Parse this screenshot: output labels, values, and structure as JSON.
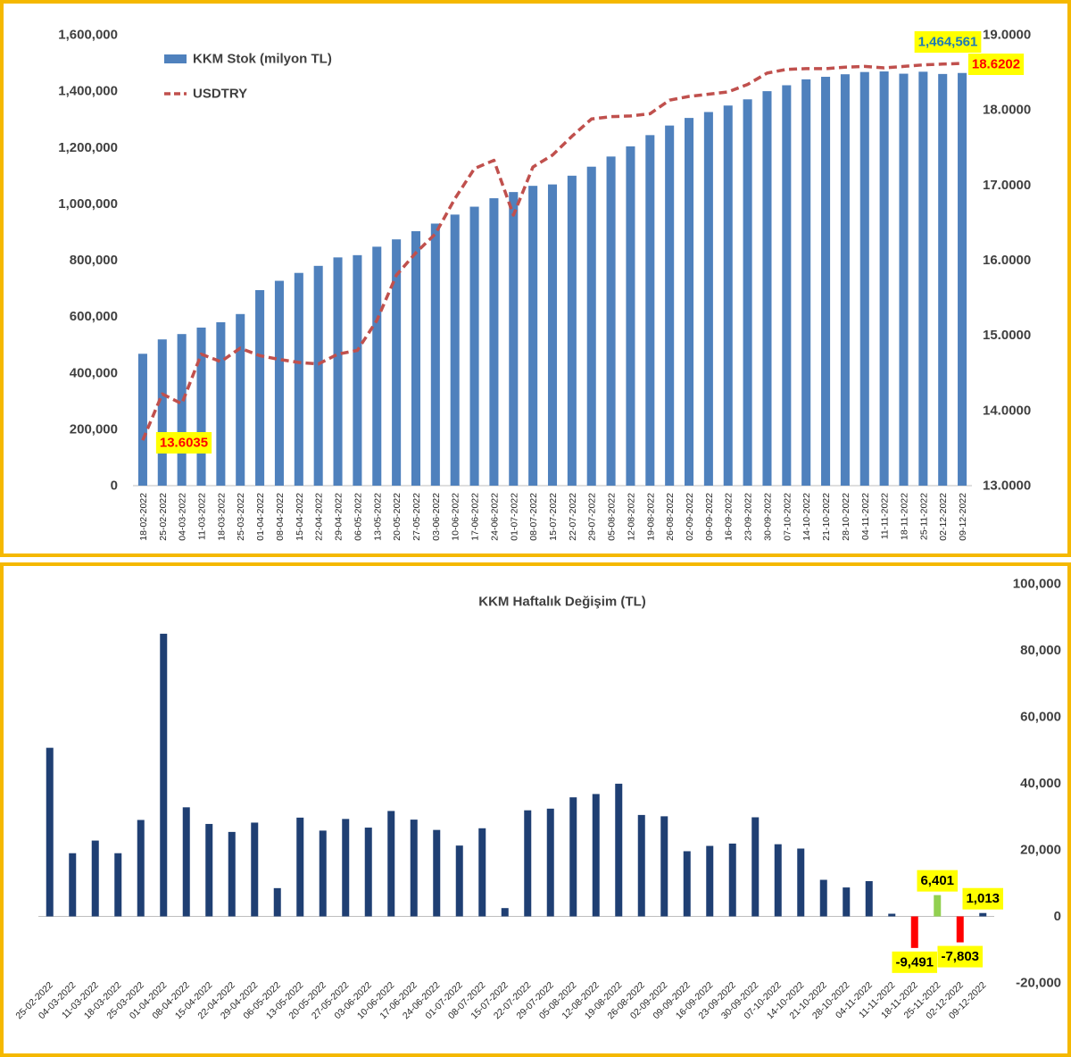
{
  "top_chart": {
    "chart_data": {
      "type": "bar",
      "legend": {
        "placement": "top-left"
      },
      "categories": [
        "18-02-2022",
        "25-02-2022",
        "04-03-2022",
        "11-03-2022",
        "18-03-2022",
        "25-03-2022",
        "01-04-2022",
        "08-04-2022",
        "15-04-2022",
        "22-04-2022",
        "29-04-2022",
        "06-05-2022",
        "13-05-2022",
        "20-05-2022",
        "27-05-2022",
        "03-06-2022",
        "10-06-2022",
        "17-06-2022",
        "24-06-2022",
        "01-07-2022",
        "08-07-2022",
        "15-07-2022",
        "22-07-2022",
        "29-07-2022",
        "05-08-2022",
        "12-08-2022",
        "19-08-2022",
        "26-08-2022",
        "02-09-2022",
        "09-09-2022",
        "16-09-2022",
        "23-09-2022",
        "30-09-2022",
        "07-10-2022",
        "14-10-2022",
        "21-10-2022",
        "28-10-2022",
        "04-11-2022",
        "11-11-2022",
        "18-11-2022",
        "25-11-2022",
        "02-12-2022",
        "09-12-2022"
      ],
      "series": [
        {
          "name": "KKM Stok (milyon TL)",
          "type": "bar",
          "axis": "left",
          "color": "#4f81bd",
          "values": [
            468000,
            519000,
            538000,
            561000,
            580000,
            609000,
            694000,
            727000,
            755000,
            780000,
            810000,
            818000,
            848000,
            874000,
            903000,
            930000,
            962000,
            990000,
            1020000,
            1042000,
            1064000,
            1069000,
            1100000,
            1132000,
            1168000,
            1204000,
            1244000,
            1278000,
            1305000,
            1326000,
            1349000,
            1371000,
            1400000,
            1421000,
            1442000,
            1451000,
            1460000,
            1468000,
            1470000,
            1462000,
            1469000,
            1461000,
            1464561
          ]
        },
        {
          "name": "USDTRY",
          "type": "line",
          "axis": "right",
          "color": "#c0504d",
          "dashed": true,
          "values": [
            13.6035,
            14.22,
            14.09,
            14.75,
            14.65,
            14.83,
            14.73,
            14.68,
            14.64,
            14.62,
            14.75,
            14.8,
            15.2,
            15.8,
            16.1,
            16.35,
            16.82,
            17.22,
            17.33,
            16.6,
            17.24,
            17.4,
            17.65,
            17.88,
            17.91,
            17.92,
            17.95,
            18.13,
            18.18,
            18.21,
            18.24,
            18.34,
            18.49,
            18.54,
            18.55,
            18.55,
            18.57,
            18.58,
            18.56,
            18.58,
            18.6,
            18.61,
            18.6202
          ]
        }
      ],
      "y_left": {
        "min": 0,
        "max": 1600000,
        "ticks": [
          "0",
          "200,000",
          "400,000",
          "600,000",
          "800,000",
          "1,000,000",
          "1,200,000",
          "1,400,000",
          "1,600,000"
        ]
      },
      "y_right": {
        "min": 13,
        "max": 19,
        "ticks": [
          "13.0000",
          "14.0000",
          "15.0000",
          "16.0000",
          "17.0000",
          "18.0000",
          "19.0000"
        ]
      },
      "grid": false,
      "callouts": {
        "last_bar": {
          "text": "1,464,561",
          "bg": "#ffff00",
          "color": "#1f7ab5"
        },
        "last_usd": {
          "text": "18.6202",
          "bg": "#ffff00",
          "color": "#ff0000"
        },
        "first_usd": {
          "text": "13.6035",
          "bg": "#ffff00",
          "color": "#ff0000"
        }
      }
    }
  },
  "bottom_chart": {
    "chart_data": {
      "type": "bar",
      "title": "KKM Haftalık Değişim (TL)",
      "categories": [
        "25-02-2022",
        "04-03-2022",
        "11-03-2022",
        "18-03-2022",
        "25-03-2022",
        "01-04-2022",
        "08-04-2022",
        "15-04-2022",
        "22-04-2022",
        "29-04-2022",
        "06-05-2022",
        "13-05-2022",
        "20-05-2022",
        "27-05-2022",
        "03-06-2022",
        "10-06-2022",
        "17-06-2022",
        "24-06-2022",
        "01-07-2022",
        "08-07-2022",
        "15-07-2022",
        "22-07-2022",
        "29-07-2022",
        "05-08-2022",
        "12-08-2022",
        "19-08-2022",
        "26-08-2022",
        "02-09-2022",
        "09-09-2022",
        "16-09-2022",
        "23-09-2022",
        "30-09-2022",
        "07-10-2022",
        "14-10-2022",
        "21-10-2022",
        "28-10-2022",
        "04-11-2022",
        "11-11-2022",
        "18-11-2022",
        "25-11-2022",
        "02-12-2022",
        "09-12-2022"
      ],
      "values": [
        50700,
        19000,
        22800,
        19000,
        29000,
        85000,
        32800,
        27800,
        25400,
        28200,
        8500,
        29700,
        25800,
        29300,
        26700,
        31700,
        29100,
        26000,
        21300,
        26500,
        2500,
        31900,
        32400,
        35800,
        36800,
        39900,
        30500,
        30100,
        19600,
        21200,
        21900,
        29800,
        21700,
        20400,
        11000,
        8700,
        10600,
        800,
        -9491,
        6401,
        -7803,
        1013
      ],
      "colors": {
        "default": "#1f3f73",
        "negative": "#ff0000",
        "positive_highlight": "#92d050"
      },
      "y": {
        "min": -20000,
        "max": 100000,
        "ticks": [
          "-20,000",
          "0",
          "20,000",
          "40,000",
          "60,000",
          "80,000",
          "100,000"
        ]
      },
      "grid": false,
      "callouts": [
        {
          "index": 38,
          "text": "-9,491"
        },
        {
          "index": 39,
          "text": "6,401"
        },
        {
          "index": 40,
          "text": "-7,803"
        },
        {
          "index": 41,
          "text": "1,013"
        }
      ],
      "callout_style": {
        "bg": "#ffff00",
        "color": "#000000"
      }
    }
  }
}
